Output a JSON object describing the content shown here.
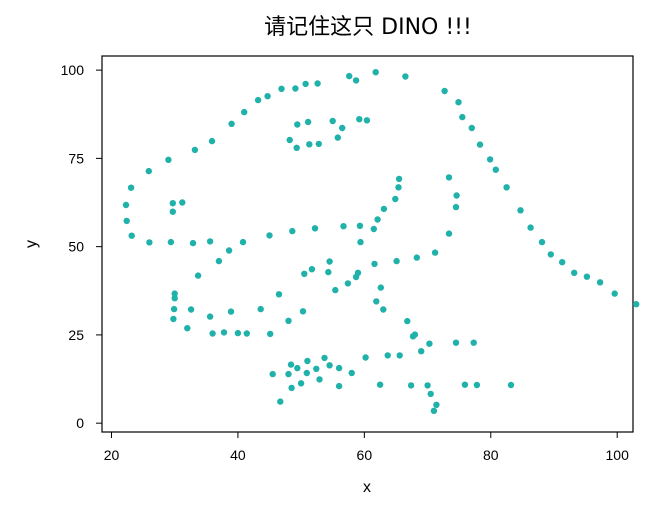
{
  "chart_data": {
    "type": "scatter",
    "title": "请记住这只 DINO !!!",
    "xlabel": "x",
    "ylabel": "y",
    "xlim": [
      18.5,
      102.5
    ],
    "ylim": [
      -2.5,
      104
    ],
    "xticks": [
      20,
      40,
      60,
      80,
      100
    ],
    "yticks": [
      0,
      25,
      50,
      75,
      100
    ],
    "grid": false,
    "legend": "none",
    "point_color": "#20b2aa",
    "points": [
      [
        22.3,
        61.8
      ],
      [
        22.4,
        57.3
      ],
      [
        23.1,
        66.7
      ],
      [
        23.2,
        53.1
      ],
      [
        25.9,
        71.4
      ],
      [
        26.0,
        51.2
      ],
      [
        29.0,
        74.6
      ],
      [
        29.4,
        51.3
      ],
      [
        29.7,
        62.3
      ],
      [
        29.7,
        59.9
      ],
      [
        30.0,
        36.7
      ],
      [
        30.0,
        35.4
      ],
      [
        29.9,
        32.3
      ],
      [
        29.8,
        29.5
      ],
      [
        31.2,
        62.5
      ],
      [
        32.0,
        26.9
      ],
      [
        32.6,
        32.2
      ],
      [
        32.9,
        51.0
      ],
      [
        33.2,
        77.4
      ],
      [
        33.7,
        41.8
      ],
      [
        35.6,
        30.2
      ],
      [
        35.6,
        51.5
      ],
      [
        35.9,
        79.9
      ],
      [
        36.0,
        25.4
      ],
      [
        37.0,
        45.9
      ],
      [
        37.8,
        25.7
      ],
      [
        38.6,
        48.9
      ],
      [
        38.9,
        31.6
      ],
      [
        39.0,
        84.8
      ],
      [
        40.0,
        25.5
      ],
      [
        40.8,
        51.3
      ],
      [
        41.4,
        25.4
      ],
      [
        41.0,
        88.1
      ],
      [
        43.2,
        91.5
      ],
      [
        43.6,
        32.3
      ],
      [
        44.7,
        92.6
      ],
      [
        45.0,
        53.2
      ],
      [
        45.1,
        25.3
      ],
      [
        45.5,
        13.9
      ],
      [
        46.5,
        36.5
      ],
      [
        46.7,
        6.1
      ],
      [
        46.9,
        94.7
      ],
      [
        48.0,
        13.9
      ],
      [
        48.2,
        80.2
      ],
      [
        48.4,
        16.6
      ],
      [
        48.6,
        54.4
      ],
      [
        48.0,
        29.0
      ],
      [
        48.5,
        10.0
      ],
      [
        49.1,
        94.8
      ],
      [
        49.4,
        15.6
      ],
      [
        49.4,
        84.6
      ],
      [
        49.3,
        78.0
      ],
      [
        50.0,
        11.3
      ],
      [
        50.3,
        31.7
      ],
      [
        50.5,
        42.3
      ],
      [
        50.9,
        14.2
      ],
      [
        50.7,
        96.1
      ],
      [
        51.0,
        17.6
      ],
      [
        51.1,
        85.3
      ],
      [
        51.3,
        79.0
      ],
      [
        51.7,
        43.6
      ],
      [
        52.2,
        55.2
      ],
      [
        52.6,
        96.2
      ],
      [
        52.4,
        15.4
      ],
      [
        52.8,
        79.1
      ],
      [
        52.9,
        12.4
      ],
      [
        53.7,
        18.5
      ],
      [
        54.3,
        42.8
      ],
      [
        54.5,
        45.8
      ],
      [
        54.5,
        16.4
      ],
      [
        55.0,
        85.6
      ],
      [
        55.4,
        37.7
      ],
      [
        56.0,
        10.5
      ],
      [
        55.8,
        80.9
      ],
      [
        56.0,
        15.6
      ],
      [
        56.5,
        83.6
      ],
      [
        56.7,
        55.8
      ],
      [
        57.6,
        98.3
      ],
      [
        57.4,
        39.6
      ],
      [
        58.7,
        97.1
      ],
      [
        58.0,
        14.2
      ],
      [
        58.7,
        41.4
      ],
      [
        59.0,
        42.6
      ],
      [
        59.2,
        86.1
      ],
      [
        59.3,
        55.9
      ],
      [
        59.4,
        51.3
      ],
      [
        60.4,
        85.8
      ],
      [
        60.2,
        18.6
      ],
      [
        61.5,
        55.0
      ],
      [
        61.6,
        45.1
      ],
      [
        62.1,
        57.7
      ],
      [
        62.6,
        38.4
      ],
      [
        63.0,
        32.2
      ],
      [
        61.8,
        99.4
      ],
      [
        61.9,
        34.5
      ],
      [
        62.5,
        10.9
      ],
      [
        63.1,
        60.7
      ],
      [
        63.7,
        19.2
      ],
      [
        64.9,
        63.5
      ],
      [
        65.6,
        19.2
      ],
      [
        65.4,
        66.8
      ],
      [
        65.1,
        45.9
      ],
      [
        65.5,
        69.2
      ],
      [
        66.5,
        98.2
      ],
      [
        66.8,
        28.9
      ],
      [
        67.4,
        10.7
      ],
      [
        68.0,
        25.1
      ],
      [
        67.7,
        24.6
      ],
      [
        68.3,
        46.9
      ],
      [
        69.0,
        20.4
      ],
      [
        70.0,
        10.7
      ],
      [
        70.3,
        22.5
      ],
      [
        70.5,
        8.3
      ],
      [
        71.2,
        48.3
      ],
      [
        71.0,
        3.5
      ],
      [
        71.4,
        5.2
      ],
      [
        72.7,
        94.1
      ],
      [
        73.4,
        69.6
      ],
      [
        73.4,
        53.7
      ],
      [
        74.9,
        90.9
      ],
      [
        74.6,
        64.5
      ],
      [
        74.5,
        61.2
      ],
      [
        74.5,
        22.8
      ],
      [
        75.5,
        86.7
      ],
      [
        75.9,
        10.9
      ],
      [
        77.0,
        83.6
      ],
      [
        77.3,
        22.8
      ],
      [
        78.3,
        78.9
      ],
      [
        77.8,
        10.8
      ],
      [
        79.9,
        74.7
      ],
      [
        80.8,
        71.8
      ],
      [
        82.5,
        66.8
      ],
      [
        83.2,
        10.8
      ],
      [
        84.7,
        60.3
      ],
      [
        86.3,
        55.4
      ],
      [
        88.1,
        51.3
      ],
      [
        89.5,
        47.8
      ],
      [
        91.3,
        45.6
      ],
      [
        93.2,
        42.6
      ],
      [
        95.2,
        41.5
      ],
      [
        97.3,
        39.9
      ],
      [
        99.6,
        36.7
      ],
      [
        103.0,
        33.7
      ]
    ]
  }
}
